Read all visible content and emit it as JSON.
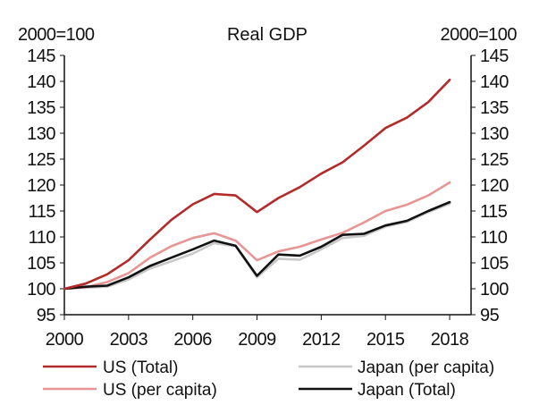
{
  "chart_data": {
    "type": "line",
    "title": "Real GDP",
    "y_unit_left": "2000=100",
    "y_unit_right": "2000=100",
    "ylim": [
      95,
      145
    ],
    "yticks": [
      95,
      100,
      105,
      110,
      115,
      120,
      125,
      130,
      135,
      140,
      145
    ],
    "xlim": [
      2000,
      2019
    ],
    "xticks": [
      2000,
      2003,
      2006,
      2009,
      2012,
      2015,
      2018
    ],
    "grid": false,
    "legend_position": "bottom",
    "x": [
      2000,
      2001,
      2002,
      2003,
      2004,
      2005,
      2006,
      2007,
      2008,
      2009,
      2010,
      2011,
      2012,
      2013,
      2014,
      2015,
      2016,
      2017,
      2018
    ],
    "series": [
      {
        "name": "US (Total)",
        "color": "#b22a2a",
        "values": [
          100,
          101.0,
          102.8,
          105.5,
          109.5,
          113.3,
          116.3,
          118.3,
          118.0,
          114.8,
          117.5,
          119.6,
          122.2,
          124.4,
          127.6,
          131.0,
          133.0,
          136.0,
          140.3
        ]
      },
      {
        "name": "US (per capita)",
        "color": "#e79595",
        "values": [
          100,
          100.3,
          101.3,
          103.0,
          106.0,
          108.2,
          109.8,
          110.7,
          109.3,
          105.5,
          107.2,
          108.1,
          109.5,
          110.8,
          112.8,
          115.0,
          116.2,
          118.0,
          120.5
        ]
      },
      {
        "name": "Japan (per capita)",
        "color": "#c8c8c8",
        "values": [
          100,
          100.2,
          100.4,
          101.8,
          103.9,
          105.3,
          106.8,
          108.8,
          108.2,
          102.2,
          105.8,
          105.6,
          107.6,
          109.8,
          110.2,
          112.0,
          112.9,
          114.8,
          116.4
        ]
      },
      {
        "name": "Japan (Total)",
        "color": "#111111",
        "values": [
          100,
          100.4,
          100.6,
          102.2,
          104.4,
          106.0,
          107.6,
          109.3,
          108.3,
          102.5,
          106.6,
          106.4,
          108.1,
          110.4,
          110.6,
          112.2,
          113.1,
          115.0,
          116.7
        ]
      }
    ],
    "legend": {
      "us_total": "US (Total)",
      "us_per_capita": "US (per capita)",
      "japan_per_capita": "Japan (per capita)",
      "japan_total": "Japan (Total)"
    }
  }
}
